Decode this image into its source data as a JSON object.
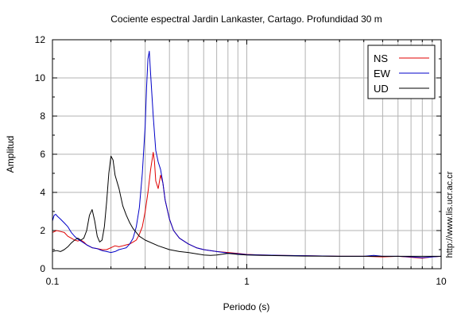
{
  "chart_data": {
    "type": "line",
    "title": "Cociente espectral Jardin Lankaster, Cartago. Profundidad 30 m",
    "xlabel": "Periodo (s)",
    "ylabel": "Amplitud",
    "x_scale": "log",
    "xlim": [
      0.1,
      10
    ],
    "ylim": [
      0,
      12
    ],
    "x_ticks": [
      {
        "value": 0.1,
        "label": "0.1"
      },
      {
        "value": 1,
        "label": "1"
      },
      {
        "value": 10,
        "label": "10"
      }
    ],
    "y_ticks": [
      {
        "value": 0,
        "label": "0"
      },
      {
        "value": 2,
        "label": "2"
      },
      {
        "value": 4,
        "label": "4"
      },
      {
        "value": 6,
        "label": "6"
      },
      {
        "value": 8,
        "label": "8"
      },
      {
        "value": 10,
        "label": "10"
      },
      {
        "value": 12,
        "label": "12"
      }
    ],
    "grid": true,
    "legend_position": "top-right",
    "credit": "http://www.lis.ucr.ac.cr",
    "series": [
      {
        "name": "NS",
        "color": "#e00000",
        "points": [
          [
            0.1,
            1.9
          ],
          [
            0.105,
            2.0
          ],
          [
            0.11,
            1.95
          ],
          [
            0.115,
            1.9
          ],
          [
            0.12,
            1.7
          ],
          [
            0.125,
            1.6
          ],
          [
            0.13,
            1.5
          ],
          [
            0.135,
            1.45
          ],
          [
            0.14,
            1.5
          ],
          [
            0.145,
            1.4
          ],
          [
            0.15,
            1.25
          ],
          [
            0.16,
            1.1
          ],
          [
            0.17,
            1.05
          ],
          [
            0.18,
            1.0
          ],
          [
            0.19,
            1.0
          ],
          [
            0.2,
            1.1
          ],
          [
            0.21,
            1.2
          ],
          [
            0.22,
            1.15
          ],
          [
            0.23,
            1.2
          ],
          [
            0.24,
            1.25
          ],
          [
            0.25,
            1.3
          ],
          [
            0.26,
            1.4
          ],
          [
            0.27,
            1.5
          ],
          [
            0.28,
            1.8
          ],
          [
            0.29,
            2.2
          ],
          [
            0.3,
            3.0
          ],
          [
            0.31,
            4.0
          ],
          [
            0.32,
            5.2
          ],
          [
            0.33,
            6.1
          ],
          [
            0.335,
            5.6
          ],
          [
            0.34,
            4.6
          ],
          [
            0.35,
            4.2
          ],
          [
            0.36,
            4.9
          ],
          [
            0.37,
            4.5
          ],
          [
            0.38,
            3.6
          ],
          [
            0.4,
            2.6
          ],
          [
            0.42,
            2.0
          ],
          [
            0.45,
            1.6
          ],
          [
            0.5,
            1.3
          ],
          [
            0.55,
            1.1
          ],
          [
            0.6,
            1.0
          ],
          [
            0.7,
            0.9
          ],
          [
            0.8,
            0.85
          ],
          [
            0.9,
            0.8
          ],
          [
            1.0,
            0.75
          ],
          [
            1.2,
            0.72
          ],
          [
            1.5,
            0.7
          ],
          [
            2.0,
            0.68
          ],
          [
            3.0,
            0.65
          ],
          [
            4.0,
            0.65
          ],
          [
            5.0,
            0.62
          ],
          [
            6.0,
            0.65
          ],
          [
            7.0,
            0.6
          ],
          [
            8.0,
            0.55
          ],
          [
            9.0,
            0.62
          ],
          [
            10.0,
            0.65
          ]
        ]
      },
      {
        "name": "EW",
        "color": "#0000c8",
        "points": [
          [
            0.1,
            2.5
          ],
          [
            0.102,
            2.8
          ],
          [
            0.104,
            2.85
          ],
          [
            0.106,
            2.75
          ],
          [
            0.11,
            2.6
          ],
          [
            0.115,
            2.4
          ],
          [
            0.12,
            2.2
          ],
          [
            0.125,
            1.9
          ],
          [
            0.13,
            1.7
          ],
          [
            0.135,
            1.55
          ],
          [
            0.14,
            1.45
          ],
          [
            0.145,
            1.35
          ],
          [
            0.15,
            1.25
          ],
          [
            0.16,
            1.1
          ],
          [
            0.17,
            1.05
          ],
          [
            0.18,
            0.95
          ],
          [
            0.19,
            0.9
          ],
          [
            0.2,
            0.85
          ],
          [
            0.21,
            0.9
          ],
          [
            0.22,
            1.0
          ],
          [
            0.23,
            1.05
          ],
          [
            0.24,
            1.1
          ],
          [
            0.25,
            1.3
          ],
          [
            0.26,
            1.6
          ],
          [
            0.27,
            2.2
          ],
          [
            0.28,
            3.2
          ],
          [
            0.29,
            5.0
          ],
          [
            0.3,
            7.5
          ],
          [
            0.305,
            9.5
          ],
          [
            0.31,
            11.0
          ],
          [
            0.315,
            11.4
          ],
          [
            0.32,
            10.2
          ],
          [
            0.33,
            8.0
          ],
          [
            0.34,
            6.2
          ],
          [
            0.35,
            5.6
          ],
          [
            0.36,
            5.2
          ],
          [
            0.37,
            4.5
          ],
          [
            0.38,
            3.6
          ],
          [
            0.4,
            2.6
          ],
          [
            0.42,
            2.0
          ],
          [
            0.45,
            1.6
          ],
          [
            0.5,
            1.3
          ],
          [
            0.55,
            1.1
          ],
          [
            0.6,
            1.0
          ],
          [
            0.7,
            0.9
          ],
          [
            0.8,
            0.82
          ],
          [
            0.9,
            0.78
          ],
          [
            1.0,
            0.74
          ],
          [
            1.2,
            0.72
          ],
          [
            1.5,
            0.7
          ],
          [
            2.0,
            0.68
          ],
          [
            3.0,
            0.65
          ],
          [
            4.0,
            0.65
          ],
          [
            4.5,
            0.7
          ],
          [
            5.0,
            0.65
          ],
          [
            6.0,
            0.65
          ],
          [
            7.0,
            0.62
          ],
          [
            8.0,
            0.58
          ],
          [
            9.0,
            0.62
          ],
          [
            10.0,
            0.65
          ]
        ]
      },
      {
        "name": "UD",
        "color": "#000000",
        "points": [
          [
            0.1,
            0.9
          ],
          [
            0.105,
            0.95
          ],
          [
            0.11,
            0.9
          ],
          [
            0.115,
            1.0
          ],
          [
            0.12,
            1.15
          ],
          [
            0.125,
            1.35
          ],
          [
            0.13,
            1.5
          ],
          [
            0.135,
            1.6
          ],
          [
            0.14,
            1.5
          ],
          [
            0.145,
            1.6
          ],
          [
            0.15,
            2.0
          ],
          [
            0.155,
            2.8
          ],
          [
            0.16,
            3.1
          ],
          [
            0.165,
            2.5
          ],
          [
            0.17,
            1.7
          ],
          [
            0.175,
            1.4
          ],
          [
            0.18,
            1.5
          ],
          [
            0.185,
            2.2
          ],
          [
            0.19,
            3.5
          ],
          [
            0.195,
            5.0
          ],
          [
            0.2,
            5.9
          ],
          [
            0.205,
            5.7
          ],
          [
            0.21,
            4.9
          ],
          [
            0.22,
            4.2
          ],
          [
            0.23,
            3.3
          ],
          [
            0.24,
            2.8
          ],
          [
            0.25,
            2.4
          ],
          [
            0.26,
            2.1
          ],
          [
            0.28,
            1.7
          ],
          [
            0.3,
            1.5
          ],
          [
            0.35,
            1.2
          ],
          [
            0.4,
            1.0
          ],
          [
            0.45,
            0.9
          ],
          [
            0.5,
            0.85
          ],
          [
            0.55,
            0.78
          ],
          [
            0.6,
            0.72
          ],
          [
            0.65,
            0.7
          ],
          [
            0.7,
            0.72
          ],
          [
            0.8,
            0.8
          ],
          [
            0.9,
            0.75
          ],
          [
            1.0,
            0.72
          ],
          [
            1.2,
            0.7
          ],
          [
            1.5,
            0.68
          ],
          [
            2.0,
            0.66
          ],
          [
            3.0,
            0.65
          ],
          [
            4.0,
            0.65
          ],
          [
            5.0,
            0.65
          ],
          [
            6.0,
            0.65
          ],
          [
            7.0,
            0.65
          ],
          [
            8.0,
            0.65
          ],
          [
            9.0,
            0.65
          ],
          [
            10.0,
            0.65
          ]
        ]
      }
    ]
  }
}
